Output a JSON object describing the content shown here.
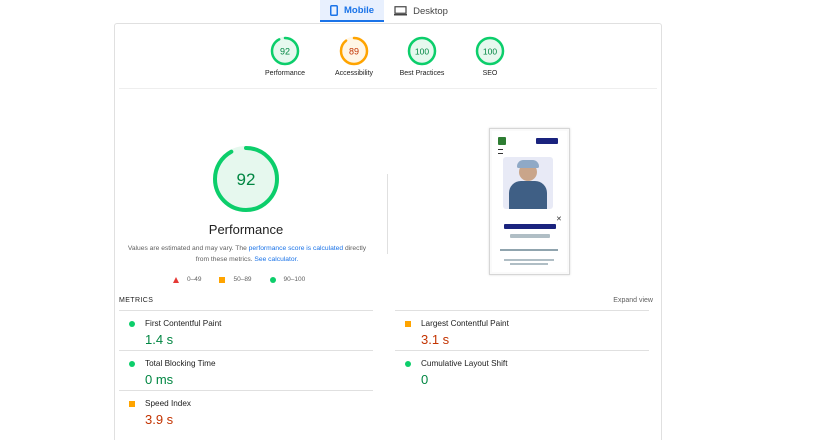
{
  "tabs": [
    {
      "label": "Mobile",
      "icon": "mobile-icon",
      "active": true
    },
    {
      "label": "Desktop",
      "icon": "desktop-icon",
      "active": false
    }
  ],
  "summary_scores": [
    {
      "label": "Performance",
      "score": "92",
      "color": "#0cce6b"
    },
    {
      "label": "Accessibility",
      "score": "89",
      "color": "#ffa400"
    },
    {
      "label": "Best Practices",
      "score": "100",
      "color": "#0cce6b"
    },
    {
      "label": "SEO",
      "score": "100",
      "color": "#0cce6b"
    }
  ],
  "performance": {
    "score": "92",
    "title": "Performance",
    "note_prefix": "Values are estimated and may vary. The ",
    "note_link1": "performance score is calculated",
    "note_mid": " directly from these metrics. ",
    "note_link2": "See calculator.",
    "score_fraction": 0.92
  },
  "legend": [
    {
      "shape": "triangle",
      "range": "0–49",
      "color": "#e53935"
    },
    {
      "shape": "square",
      "range": "50–89",
      "color": "#ffa400"
    },
    {
      "shape": "circle",
      "range": "90–100",
      "color": "#0cce6b"
    }
  ],
  "metrics_header": {
    "title": "METRICS",
    "expand": "Expand view"
  },
  "metrics": [
    {
      "name": "First Contentful Paint",
      "value": "1.4 s",
      "status": "good"
    },
    {
      "name": "Largest Contentful Paint",
      "value": "3.1 s",
      "status": "average"
    },
    {
      "name": "Total Blocking Time",
      "value": "0 ms",
      "status": "good"
    },
    {
      "name": "Cumulative Layout Shift",
      "value": "0",
      "status": "good"
    },
    {
      "name": "Speed Index",
      "value": "3.9 s",
      "status": "average"
    }
  ],
  "colors": {
    "good": "#0cce6b",
    "average": "#ffa400",
    "fail": "#e53935",
    "accent": "#1a73e8"
  }
}
